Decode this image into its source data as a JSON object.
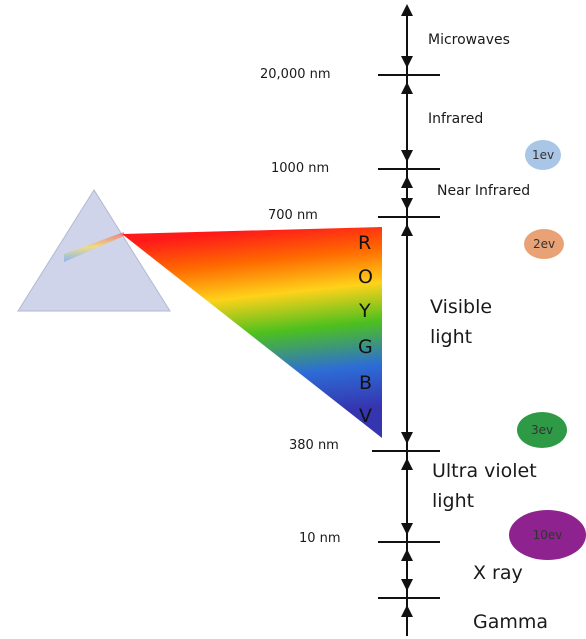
{
  "bands": {
    "microwaves": "Microwaves",
    "infrared": "Infrared",
    "near_infrared": "Near Infrared",
    "visible": [
      "Visible",
      "light"
    ],
    "ultraviolet": [
      "Ultra violet",
      "light"
    ],
    "xray": "X ray",
    "gamma": "Gamma"
  },
  "ticks": {
    "t20000": "20,000 nm",
    "t1000": "1000 nm",
    "t700": "700 nm",
    "t380": "380 nm",
    "t10": "10 nm"
  },
  "spectrum_letters": [
    "R",
    "O",
    "Y",
    "G",
    "B",
    "V"
  ],
  "badges": [
    {
      "label": "1ev",
      "color": "#a9c6e6"
    },
    {
      "label": "2ev",
      "color": "#e8a276"
    },
    {
      "label": "3ev",
      "color": "#2e9a45"
    },
    {
      "label": "10ev",
      "color": "#8e238f"
    }
  ]
}
